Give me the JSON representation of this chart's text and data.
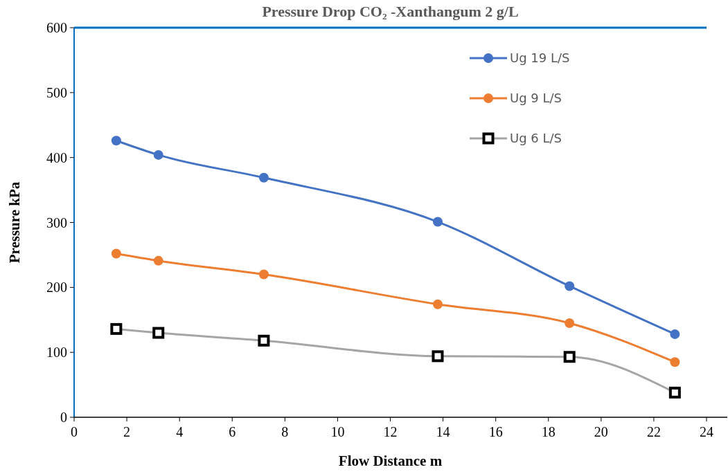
{
  "chart_data": {
    "type": "line",
    "title": "Pressure Drop  CO₂ -Xanthangum 2 g/L",
    "xlabel": "Flow Distance m",
    "ylabel": "Pressure  kPa",
    "x": [
      1.6,
      3.2,
      7.2,
      13.8,
      18.8,
      22.8
    ],
    "series": [
      {
        "name": "Ug 19 L/S",
        "color": "#4472c4",
        "marker": "circle",
        "values": [
          426,
          404,
          369,
          301,
          202,
          128
        ]
      },
      {
        "name": "Ug 9 L/S",
        "color": "#ed7d31",
        "marker": "circle",
        "values": [
          252,
          241,
          220,
          174,
          145,
          85
        ]
      },
      {
        "name": "Ug 6 L/S",
        "color": "#a5a5a5",
        "marker": "square",
        "values": [
          136,
          130,
          118,
          94,
          93,
          38
        ]
      }
    ],
    "xlim": [
      0,
      24
    ],
    "xticks": [
      0,
      2,
      4,
      6,
      8,
      10,
      12,
      14,
      16,
      18,
      20,
      22,
      24
    ],
    "ylim": [
      0,
      600
    ],
    "yticks": [
      0,
      100,
      200,
      300,
      400,
      500,
      600
    ],
    "grid": false,
    "legend": "top right",
    "line_style": "solid"
  }
}
